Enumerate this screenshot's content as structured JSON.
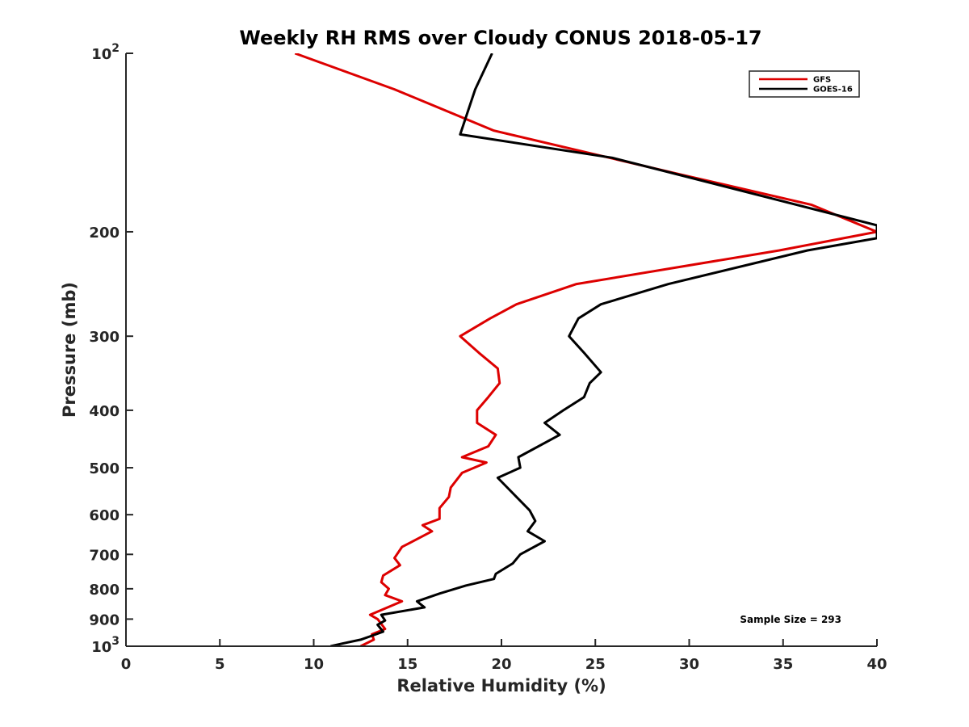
{
  "chart_data": {
    "type": "line",
    "title": "Weekly RH RMS over Cloudy CONUS 2018-05-17",
    "xlabel": "Relative Humidity (%)",
    "ylabel": "Pressure (mb)",
    "xlim": [
      0,
      40
    ],
    "ylim": [
      100,
      1000
    ],
    "yscale": "log",
    "yreversed": true,
    "grid": false,
    "legend_position": "top-right",
    "x_ticks": [
      0,
      5,
      10,
      15,
      20,
      25,
      30,
      35,
      40
    ],
    "x_tick_labels": [
      "0",
      "5",
      "10",
      "15",
      "20",
      "25",
      "30",
      "35",
      "40"
    ],
    "y_ticks": [
      100,
      200,
      300,
      400,
      500,
      600,
      700,
      800,
      900,
      1000
    ],
    "y_tick_labels": [
      {
        "base": "10",
        "exp": "2"
      },
      {
        "base": "200"
      },
      {
        "base": "300"
      },
      {
        "base": "400"
      },
      {
        "base": "500"
      },
      {
        "base": "600"
      },
      {
        "base": "700"
      },
      {
        "base": "800"
      },
      {
        "base": "900"
      },
      {
        "base": "10",
        "exp": "3"
      }
    ],
    "annotation": "Sample Size = 293",
    "series": [
      {
        "name": "GFS",
        "color": "#dd0000",
        "points": [
          [
            9.0,
            100
          ],
          [
            14.3,
            115
          ],
          [
            19.6,
            135
          ],
          [
            29.5,
            160
          ],
          [
            36.5,
            180
          ],
          [
            40.0,
            200
          ],
          [
            34.8,
            215
          ],
          [
            24.0,
            245
          ],
          [
            20.8,
            265
          ],
          [
            19.4,
            280
          ],
          [
            17.8,
            300
          ],
          [
            18.8,
            320
          ],
          [
            19.8,
            340
          ],
          [
            19.9,
            360
          ],
          [
            19.3,
            380
          ],
          [
            18.7,
            400
          ],
          [
            18.7,
            420
          ],
          [
            19.7,
            440
          ],
          [
            19.3,
            460
          ],
          [
            17.9,
            480
          ],
          [
            19.2,
            490
          ],
          [
            17.9,
            510
          ],
          [
            17.3,
            540
          ],
          [
            17.2,
            560
          ],
          [
            16.7,
            585
          ],
          [
            16.7,
            610
          ],
          [
            15.8,
            625
          ],
          [
            16.3,
            640
          ],
          [
            14.7,
            680
          ],
          [
            14.3,
            710
          ],
          [
            14.6,
            730
          ],
          [
            13.7,
            760
          ],
          [
            13.6,
            780
          ],
          [
            14.0,
            800
          ],
          [
            13.8,
            820
          ],
          [
            14.7,
            840
          ],
          [
            13.0,
            885
          ],
          [
            13.4,
            900
          ],
          [
            13.8,
            935
          ],
          [
            13.1,
            955
          ],
          [
            13.2,
            975
          ],
          [
            12.5,
            1000
          ]
        ]
      },
      {
        "name": "GOES-16",
        "color": "#000000",
        "points": [
          [
            19.5,
            100
          ],
          [
            18.6,
            115
          ],
          [
            17.8,
            137
          ],
          [
            25.9,
            150
          ],
          [
            40.0,
            195
          ],
          [
            40.0,
            205
          ],
          [
            36.3,
            215
          ],
          [
            28.9,
            245
          ],
          [
            25.3,
            265
          ],
          [
            24.1,
            280
          ],
          [
            23.6,
            300
          ],
          [
            24.4,
            320
          ],
          [
            25.3,
            345
          ],
          [
            24.7,
            360
          ],
          [
            24.4,
            380
          ],
          [
            23.3,
            400
          ],
          [
            22.3,
            420
          ],
          [
            23.1,
            440
          ],
          [
            20.9,
            480
          ],
          [
            21.0,
            500
          ],
          [
            19.8,
            520
          ],
          [
            20.8,
            560
          ],
          [
            21.5,
            590
          ],
          [
            21.8,
            615
          ],
          [
            21.4,
            640
          ],
          [
            22.3,
            665
          ],
          [
            21.0,
            700
          ],
          [
            20.6,
            725
          ],
          [
            19.7,
            755
          ],
          [
            19.6,
            770
          ],
          [
            18.1,
            790
          ],
          [
            16.7,
            815
          ],
          [
            15.5,
            840
          ],
          [
            15.9,
            860
          ],
          [
            13.6,
            885
          ],
          [
            13.8,
            905
          ],
          [
            13.4,
            920
          ],
          [
            13.7,
            945
          ],
          [
            13.1,
            960
          ],
          [
            12.5,
            975
          ],
          [
            11.5,
            990
          ],
          [
            10.9,
            1000
          ]
        ]
      }
    ]
  }
}
